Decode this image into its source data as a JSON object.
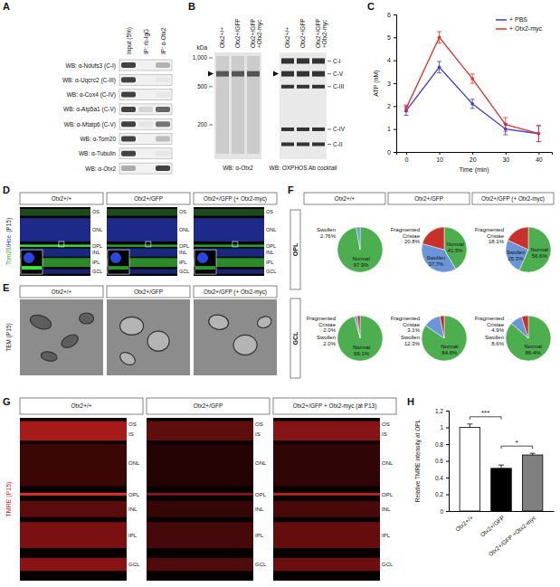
{
  "panels": {
    "letters": [
      "A",
      "B",
      "C",
      "D",
      "E",
      "F",
      "G",
      "H"
    ],
    "A": {
      "columns": [
        "Input (5%)",
        "IP: rb-IgG",
        "IP: α-Otx2"
      ],
      "rows": [
        "WB: α-Ndufs3 (C-I)",
        "WB: α-Uqcrc2 (C-III)",
        "WB: α-Cox4 (C-IV)",
        "WB: α-Atp5a1 (C-V)",
        "WB: α-Mtatp6 (C-V)",
        "WB: α-Tom20",
        "WB: α-Tubulin",
        "WB: α-Otx2"
      ]
    },
    "B": {
      "columns": [
        "Otx2+/+",
        "Otx2+/GFP",
        "Otx2+/GFP +Otx2-myc"
      ],
      "kda_label": "kDa",
      "kda_ticks": [
        {
          "value": 1000,
          "label": "1,000"
        },
        500,
        200
      ],
      "blots": [
        "WB: α-Otx2",
        "WB: OXPHOS Ab cocktail"
      ],
      "complexes": [
        "C-I",
        "C-V",
        "C-III",
        "C-IV",
        "C-II"
      ]
    },
    "D": {
      "columns": [
        "Otx2+/+",
        "Otx2+/GFP",
        "Otx2+/GFP (+ Otx2-myc)"
      ],
      "stain": [
        "Tom20",
        "/Hoe",
        "(P15)"
      ],
      "layers": [
        "OS",
        "ONL",
        "OPL",
        "INL",
        "IPL",
        "GCL"
      ]
    },
    "E": {
      "columns": [
        "Otx2+/+",
        "Otx2+/GFP",
        "Otx2+/GFP (+ Otx2-myc)"
      ],
      "stain": "TEM (P15)"
    },
    "F": {
      "columns": [
        "Otx2+/+",
        "Otx2+/GFP",
        "Otx2+/GFP (+ Otx2-myc)"
      ],
      "rows": [
        "OPL",
        "GCL"
      ]
    },
    "G": {
      "columns": [
        "Otx2+/+",
        "Otx2+/GFP",
        "Otx2+/GFP + Otx2-myc (at P13)"
      ],
      "stain": "TMRE (P15)",
      "layers": [
        "OS",
        "IS",
        "ONL",
        "OPL",
        "INL",
        "IPL",
        "GCL"
      ]
    }
  },
  "chart_data": [
    {
      "type": "line",
      "xlabel": "Time (min)",
      "ylabel": "ATP (nM)",
      "x": [
        0,
        10,
        20,
        30,
        40
      ],
      "xlim": [
        -3,
        44
      ],
      "xticks": [
        0,
        10,
        20,
        30,
        40
      ],
      "ylim": [
        0,
        6
      ],
      "yticks": [
        0,
        1,
        2,
        3,
        4,
        5,
        6
      ],
      "legend": "upper right",
      "marker": "circle",
      "series": [
        {
          "name": "+ PBS",
          "color": "#3b3bdc",
          "values": [
            1.8,
            3.7,
            2.1,
            1.0,
            0.8
          ],
          "errors": [
            0.2,
            0.25,
            0.2,
            0.25,
            0.35
          ]
        },
        {
          "name": "+ Otx2-myc",
          "color": "#e0302c",
          "values": [
            1.9,
            5.0,
            3.2,
            1.2,
            0.8
          ],
          "errors": [
            0.15,
            0.25,
            0.2,
            0.3,
            0.35
          ]
        }
      ]
    },
    {
      "type": "pie",
      "categories": [
        "Normal",
        "Swollen"
      ],
      "values": [
        97.9,
        2.76
      ],
      "value_labels": [
        "97.9%",
        "2.76%"
      ],
      "colors": [
        "#4cae4f",
        "#6a96d8"
      ]
    },
    {
      "type": "pie",
      "categories": [
        "Normal",
        "Swollen",
        "Fragmented Cristae"
      ],
      "values": [
        41.5,
        37.7,
        20.8
      ],
      "value_labels": [
        "41.5%",
        "37.7%",
        "20.8%"
      ],
      "colors": [
        "#4cae4f",
        "#6a96d8",
        "#c9302c"
      ]
    },
    {
      "type": "pie",
      "categories": [
        "Normal",
        "Swollen",
        "Fragmented Cristae"
      ],
      "values": [
        56.6,
        25.3,
        18.1
      ],
      "value_labels": [
        "56.6%",
        "25.3%",
        "18.1%"
      ],
      "colors": [
        "#4cae4f",
        "#6a96d8",
        "#c9302c"
      ]
    },
    {
      "type": "pie",
      "categories": [
        "Normal",
        "Swollen",
        "Fragmented Cristae"
      ],
      "values": [
        96.1,
        2.0,
        2.0
      ],
      "value_labels": [
        "96.1%",
        "2.0%",
        "2.0%"
      ],
      "colors": [
        "#4cae4f",
        "#6a96d8",
        "#c9302c"
      ]
    },
    {
      "type": "pie",
      "categories": [
        "Normal",
        "Swollen",
        "Fragmented Cristae"
      ],
      "values": [
        84.6,
        12.3,
        3.1
      ],
      "value_labels": [
        "84.6%",
        "12.3%",
        "3.1%"
      ],
      "colors": [
        "#4cae4f",
        "#6a96d8",
        "#c9302c"
      ]
    },
    {
      "type": "pie",
      "categories": [
        "Normal",
        "Swollen",
        "Fragmented Cristae"
      ],
      "values": [
        86.4,
        8.6,
        4.9
      ],
      "value_labels": [
        "86.4%",
        "8.6%",
        "4.9%"
      ],
      "colors": [
        "#4cae4f",
        "#6a96d8",
        "#c9302c"
      ]
    },
    {
      "type": "bar",
      "ylabel": "Relative TMRE intensity at OPL",
      "categories": [
        "Otx2+/+",
        "Otx2+/GFP",
        "Otx2+/GFP +Otx2-myc"
      ],
      "values": [
        1.0,
        0.51,
        0.67
      ],
      "errors": [
        0.04,
        0.04,
        0.02
      ],
      "colors": [
        "#ffffff",
        "#000000",
        "#808080"
      ],
      "ylim": [
        0,
        1.2
      ],
      "yticks": [
        0,
        0.2,
        0.4,
        0.6,
        0.8,
        1,
        1.2
      ],
      "annotations": [
        "***",
        "*"
      ]
    }
  ]
}
